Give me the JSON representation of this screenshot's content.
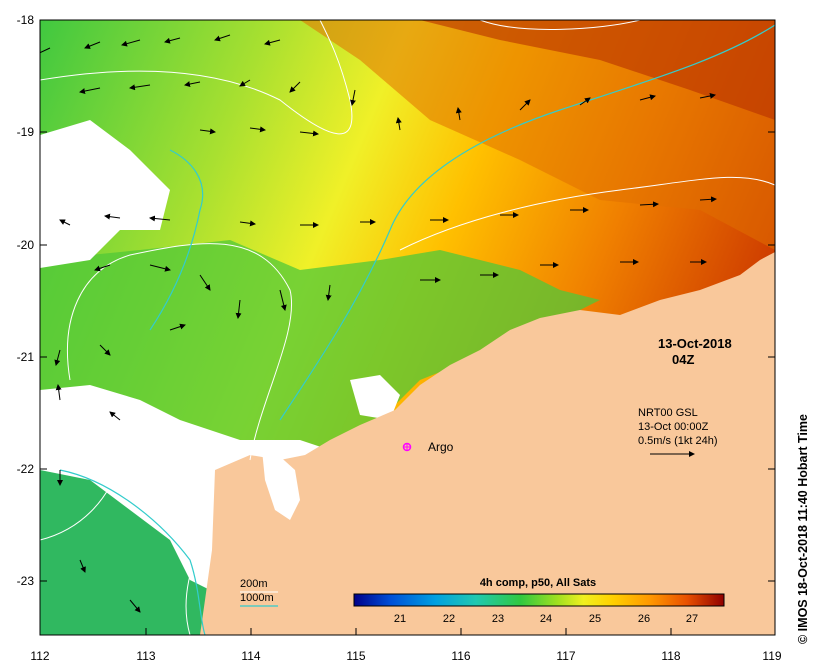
{
  "map": {
    "x_ticks": [
      "112",
      "113",
      "114",
      "115",
      "116",
      "117",
      "118",
      "119"
    ],
    "y_ticks": [
      "-18",
      "-19",
      "-20",
      "-21",
      "-22",
      "-23"
    ],
    "date_label": "13-Oct-2018",
    "time_label": "04Z",
    "current_legend": {
      "line1": "NRT00 GSL",
      "line2": "13-Oct 00:00Z",
      "line3": "0.5m/s (1kt 24h)"
    },
    "argo_label": "Argo",
    "isobath_legend": {
      "label_200": "200m",
      "label_1000": "1000m",
      "color_200": "#ffffff",
      "color_1000": "#33cccc"
    },
    "colorbar": {
      "title": "4h comp, p50, All Sats",
      "ticks": [
        "21",
        "22",
        "23",
        "24",
        "25",
        "26",
        "27"
      ],
      "colors": [
        "#00008a",
        "#0040d0",
        "#0090e0",
        "#20c0c0",
        "#30c860",
        "#50d020",
        "#a0e020",
        "#e0f020",
        "#ffe000",
        "#ffb000",
        "#f07000",
        "#d03000",
        "#900000"
      ]
    },
    "credit": "© IMOS 18-Oct-2018 11:40 Hobart Time",
    "land_color": "#f9c89b"
  }
}
